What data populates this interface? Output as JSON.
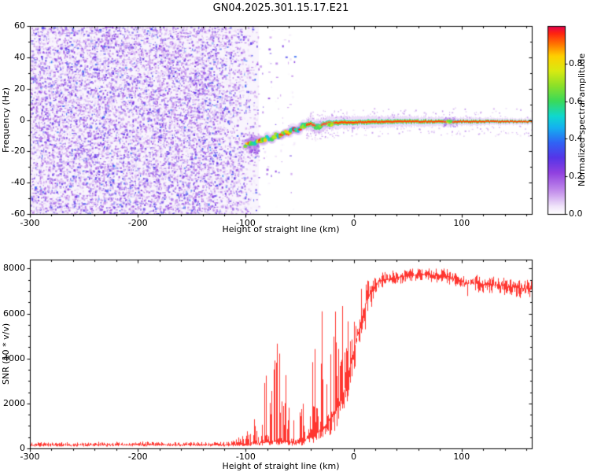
{
  "title": "GN04.2025.301.15.17.E21",
  "chart_data": [
    {
      "type": "heatmap",
      "title": "GN04.2025.301.15.17.E21",
      "xlabel": "Height of straight line (km)",
      "ylabel": "Frequency (Hz)",
      "xlim": [
        -300,
        165
      ],
      "ylim": [
        -60,
        60
      ],
      "xticks": [
        -300,
        -200,
        -100,
        0,
        100
      ],
      "yticks": [
        -60,
        -40,
        -20,
        0,
        20,
        40,
        60
      ],
      "colorbar": {
        "label": "Normalized spectral amplitude",
        "range": [
          0,
          1
        ],
        "ticks": [
          0.0,
          0.2,
          0.4,
          0.6,
          0.8
        ],
        "stops": [
          [
            0.0,
            "#ffffff"
          ],
          [
            0.04,
            "#f0e4fa"
          ],
          [
            0.12,
            "#c490ec"
          ],
          [
            0.22,
            "#9040e0"
          ],
          [
            0.3,
            "#5535e8"
          ],
          [
            0.38,
            "#2f64f5"
          ],
          [
            0.46,
            "#14b2f0"
          ],
          [
            0.52,
            "#0fd8cf"
          ],
          [
            0.6,
            "#3ada5a"
          ],
          [
            0.68,
            "#8ae02a"
          ],
          [
            0.76,
            "#d8ea12"
          ],
          [
            0.84,
            "#ffd000"
          ],
          [
            0.9,
            "#ff7a00"
          ],
          [
            0.96,
            "#ff2410"
          ],
          [
            1.0,
            "#e20050"
          ]
        ]
      },
      "noise_region": {
        "x_start": -300,
        "x_full_end": -125,
        "x_fade_end": -88,
        "tail_end": -55,
        "tail_density": 0.04,
        "value_range": [
          0.02,
          0.3
        ]
      },
      "signal_trace": {
        "points": [
          [
            -100,
            -17
          ],
          [
            -96,
            -14.5
          ],
          [
            -92,
            -16
          ],
          [
            -88,
            -12.5
          ],
          [
            -84,
            -13.5
          ],
          [
            -80,
            -11
          ],
          [
            -76,
            -12.5
          ],
          [
            -72,
            -9
          ],
          [
            -68,
            -10.5
          ],
          [
            -64,
            -7.5
          ],
          [
            -60,
            -9
          ],
          [
            -56,
            -5.5
          ],
          [
            -52,
            -7
          ],
          [
            -48,
            -4
          ],
          [
            -44,
            -3
          ],
          [
            -40,
            -2.5
          ],
          [
            -36,
            -4
          ],
          [
            -32,
            -4.5
          ],
          [
            -28,
            -2.5
          ],
          [
            -24,
            -2
          ],
          [
            -20,
            -2
          ],
          [
            -10,
            -1.5
          ],
          [
            0,
            -1.5
          ],
          [
            20,
            -1.2
          ],
          [
            40,
            -1
          ],
          [
            60,
            -1
          ],
          [
            80,
            -1
          ],
          [
            100,
            -1
          ],
          [
            120,
            -1
          ],
          [
            140,
            -1
          ],
          [
            165,
            -1
          ]
        ],
        "blobs": [
          [
            -33,
            -4.5,
            6
          ],
          [
            -22,
            -3,
            4
          ],
          [
            88,
            -1,
            4
          ]
        ]
      }
    },
    {
      "type": "line",
      "xlabel": "Height of straight line (km)",
      "ylabel": "SNR (10 * v/v)",
      "xlim": [
        -300,
        165
      ],
      "ylim": [
        0,
        8400
      ],
      "xticks": [
        -300,
        -200,
        -100,
        0,
        100
      ],
      "yticks": [
        0,
        2000,
        4000,
        6000,
        8000
      ],
      "series": [
        {
          "name": "SNR",
          "color": "#ff2b25",
          "envelope": {
            "x": [
              -300,
              -250,
              -200,
              -150,
              -115,
              -100,
              -92,
              -84,
              -76,
              -68,
              -61,
              -55,
              -49,
              -43,
              -37,
              -31,
              -25,
              -19,
              -13,
              -8,
              -3,
              2,
              7,
              12,
              17,
              22,
              30,
              40,
              55,
              65,
              75,
              85,
              95,
              103,
              110,
              120,
              135,
              150,
              165
            ],
            "base": [
              140,
              150,
              160,
              150,
              150,
              180,
              220,
              260,
              300,
              320,
              280,
              250,
              300,
              450,
              600,
              800,
              1100,
              1500,
              2000,
              2800,
              3800,
              4800,
              5800,
              6600,
              7100,
              7400,
              7500,
              7600,
              7700,
              7750,
              7700,
              7650,
              7550,
              7350,
              7350,
              7300,
              7250,
              7150,
              7080
            ],
            "up": [
              130,
              140,
              150,
              130,
              140,
              500,
              2200,
              3900,
              4300,
              4400,
              2800,
              1100,
              2600,
              4200,
              4800,
              5300,
              5300,
              4900,
              4400,
              3800,
              3100,
              2300,
              1500,
              900,
              600,
              420,
              380,
              350,
              320,
              300,
              320,
              350,
              400,
              500,
              400,
              380,
              380,
              400,
              420
            ],
            "down": [
              60,
              70,
              70,
              60,
              60,
              80,
              120,
              150,
              180,
              200,
              160,
              140,
              180,
              250,
              350,
              450,
              600,
              800,
              1000,
              1300,
              1500,
              1600,
              1500,
              1100,
              700,
              400,
              320,
              300,
              300,
              300,
              320,
              350,
              400,
              700,
              400,
              380,
              400,
              450,
              480
            ]
          }
        }
      ]
    }
  ]
}
